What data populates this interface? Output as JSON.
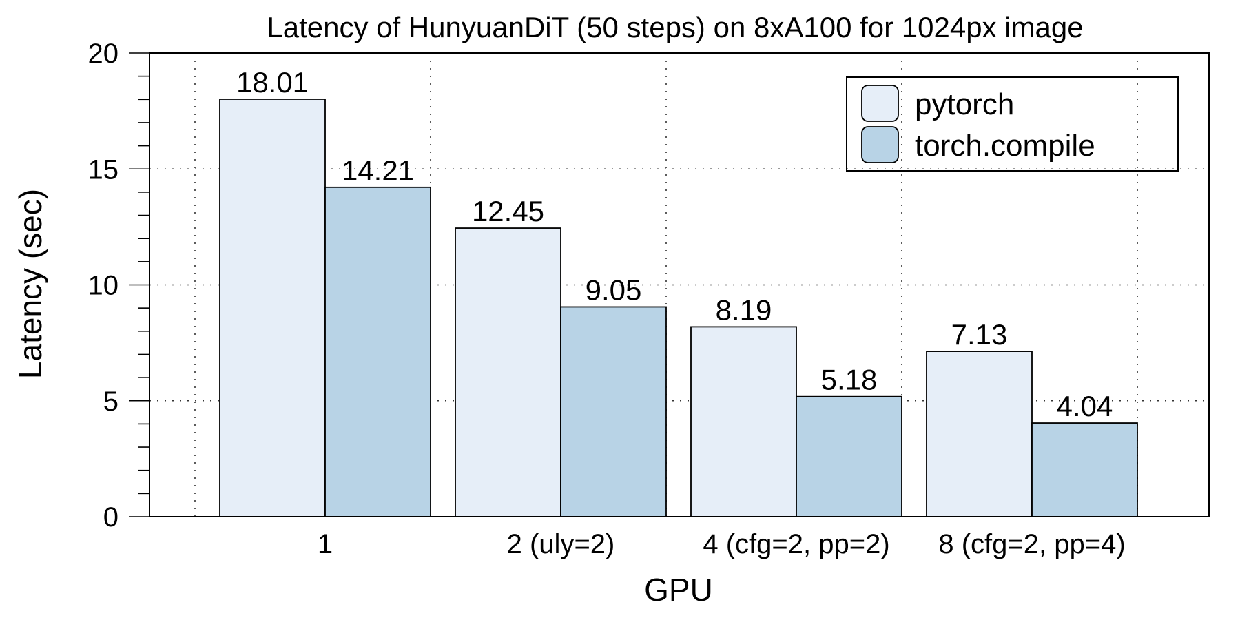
{
  "chart_data": {
    "type": "bar",
    "title": "Latency of HunyuanDiT (50 steps) on 8xA100 for 1024px image",
    "xlabel": "GPU",
    "ylabel": "Latency (sec)",
    "categories": [
      "1",
      "2 (uly=2)",
      "4 (cfg=2, pp=2)",
      "8 (cfg=2, pp=4)"
    ],
    "series": [
      {
        "name": "pytorch",
        "values": [
          18.01,
          12.45,
          8.19,
          7.13
        ],
        "color": "#e6eef8"
      },
      {
        "name": "torch.compile",
        "values": [
          14.21,
          9.05,
          5.18,
          4.04
        ],
        "color": "#b8d3e6"
      }
    ],
    "data_labels": [
      [
        "18.01",
        "12.45",
        "8.19",
        "7.13"
      ],
      [
        "14.21",
        "9.05",
        "5.18",
        "4.04"
      ]
    ],
    "ylim": [
      0,
      20
    ],
    "yticks": [
      0,
      5,
      10,
      15,
      20
    ],
    "ytick_labels": [
      "0",
      "5",
      "10",
      "15",
      "20"
    ],
    "grid": true,
    "legend_position": "top-right"
  }
}
